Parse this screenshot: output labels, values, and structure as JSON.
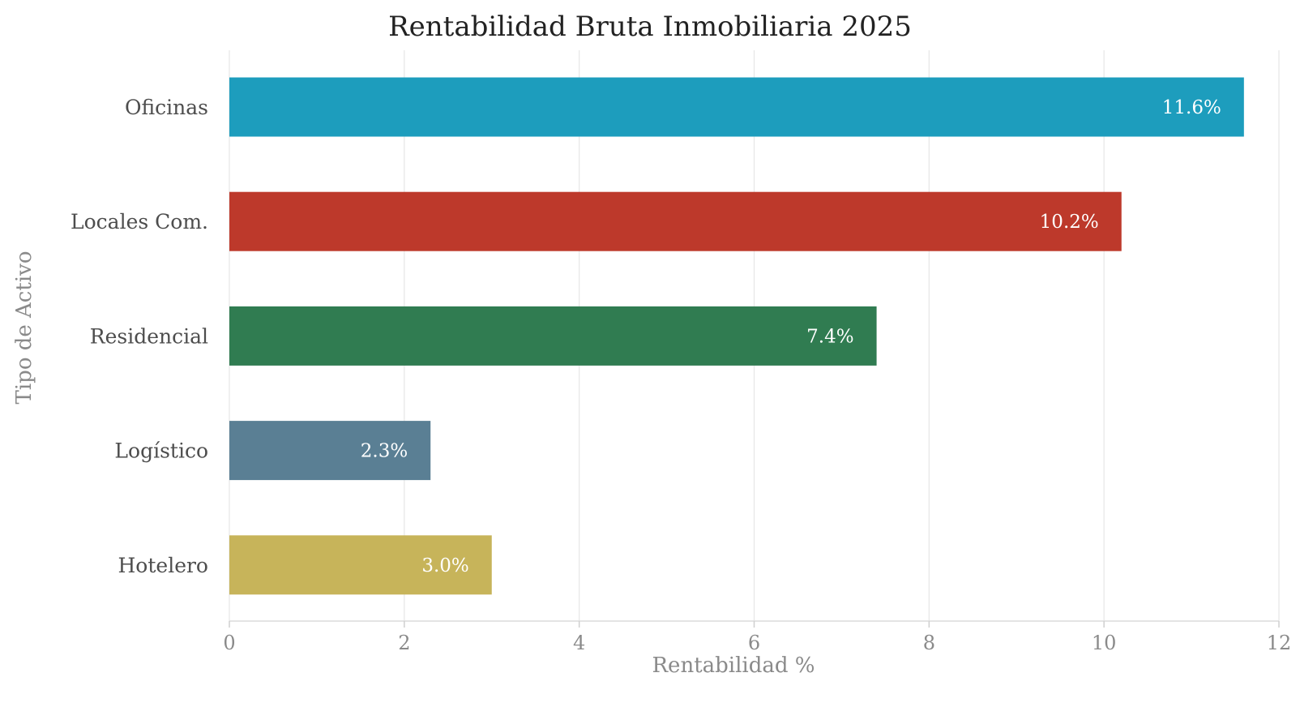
{
  "chart_data": {
    "type": "bar",
    "orientation": "horizontal",
    "title": "Rentabilidad Bruta Inmobiliaria 2025",
    "xlabel": "Rentabilidad %",
    "ylabel": "Tipo de Activo",
    "categories": [
      "Oficinas",
      "Locales Com.",
      "Residencial",
      "Logístico",
      "Hotelero"
    ],
    "values": [
      11.6,
      10.2,
      7.4,
      2.3,
      3.0
    ],
    "value_labels": [
      "11.6%",
      "10.2%",
      "7.4%",
      "2.3%",
      "3.0%"
    ],
    "colors": [
      "#1d9dbd",
      "#bd392b",
      "#307c51",
      "#5a7f94",
      "#c7b45a"
    ],
    "xlim": [
      0,
      12
    ],
    "xticks": [
      0,
      2,
      4,
      6,
      8,
      10,
      12
    ],
    "xtick_labels": [
      "0",
      "2",
      "4",
      "6",
      "8",
      "10",
      "12"
    ],
    "grid": "vertical",
    "legend": "none"
  }
}
